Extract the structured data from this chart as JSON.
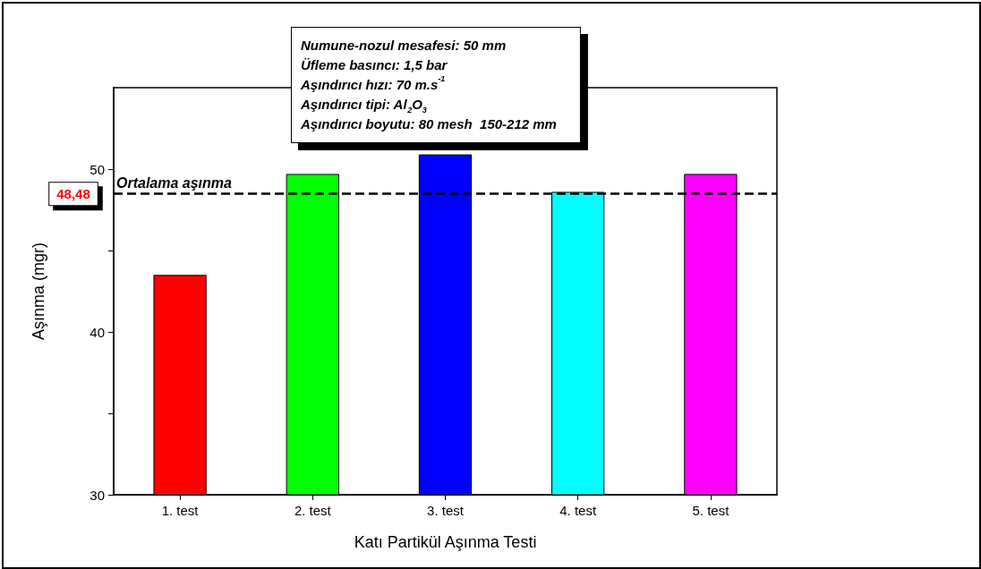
{
  "chart_data": {
    "type": "bar",
    "categories": [
      "1. test",
      "2. test",
      "3. test",
      "4. test",
      "5. test"
    ],
    "colors": [
      "#ff0000",
      "#00ff00",
      "#0000ff",
      "#00ffff",
      "#ff00ff"
    ],
    "values": [
      43.5,
      49.7,
      50.9,
      48.6,
      49.7
    ],
    "xlabel": "Katı Partikül Aşınma Testi",
    "ylabel": "Aşınma (mgr)",
    "ylim": [
      30,
      55
    ],
    "yticks": [
      30,
      {
        "value": 35,
        "label": null
      },
      40,
      {
        "value": 45,
        "label": null
      },
      50
    ],
    "grid": false,
    "ref_lines": [
      {
        "axis": "y",
        "value": 48.48,
        "label": "Ortalama aşınma",
        "color": "#000000",
        "line_style": "dashed"
      }
    ],
    "annotations": [
      "Numune-nozul mesafesi: 50 mm",
      "Üfleme basıncı: 1,5 bar",
      "Aşındırıcı hızı: 70 m.s$^{-1}$",
      "Aşındırıcı tipi: Al$_{2}$O$_{3}$",
      "Aşındırıcı boyutu: 80 mesh  150-212 mm",
      "48,48"
    ]
  }
}
